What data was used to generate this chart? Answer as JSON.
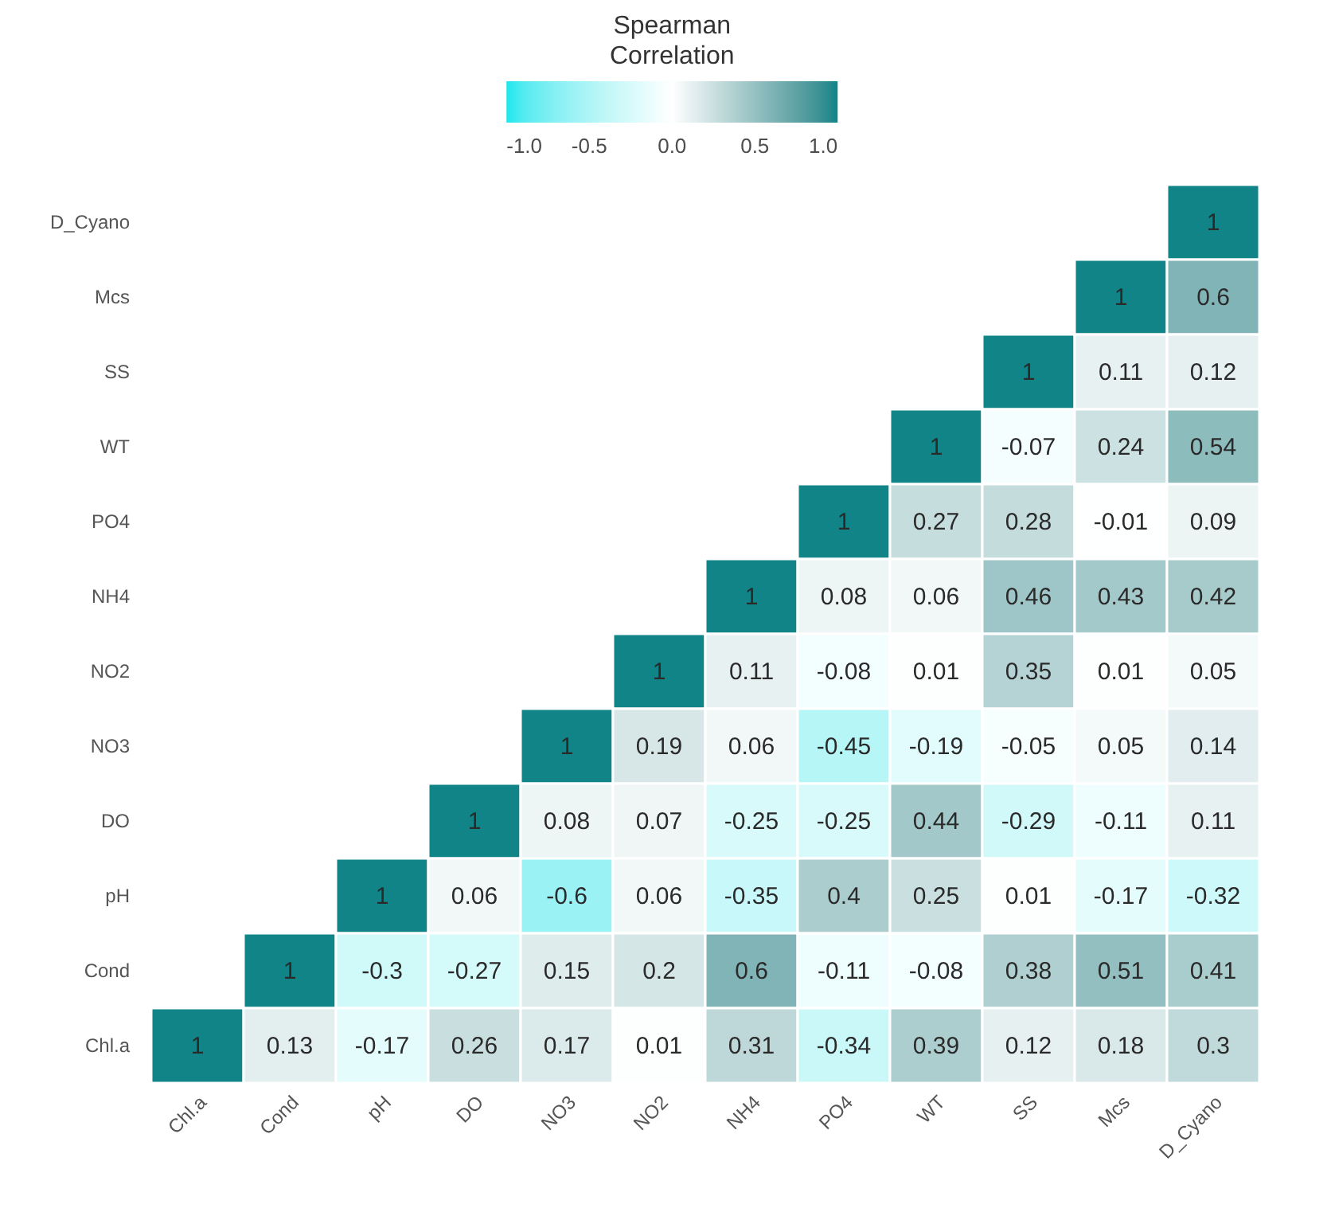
{
  "chart_data": {
    "type": "heatmap",
    "clabel": "Spearman Correlation",
    "data_labels": true,
    "categories": [
      "Chl.a",
      "Cond",
      "pH",
      "DO",
      "NO3",
      "NO2",
      "NH4",
      "PO4",
      "WT",
      "SS",
      "Mcs",
      "D_Cyano"
    ],
    "y_categories": [
      "D_Cyano",
      "Mcs",
      "SS",
      "WT",
      "PO4",
      "NH4",
      "NO2",
      "NO3",
      "DO",
      "pH",
      "Cond",
      "Chl.a"
    ],
    "cells": [
      [
        null,
        null,
        null,
        null,
        null,
        null,
        null,
        null,
        null,
        null,
        null,
        1
      ],
      [
        null,
        null,
        null,
        null,
        null,
        null,
        null,
        null,
        null,
        null,
        1,
        0.6
      ],
      [
        null,
        null,
        null,
        null,
        null,
        null,
        null,
        null,
        null,
        1,
        0.11,
        0.12
      ],
      [
        null,
        null,
        null,
        null,
        null,
        null,
        null,
        null,
        1,
        -0.07,
        0.24,
        0.54
      ],
      [
        null,
        null,
        null,
        null,
        null,
        null,
        null,
        1,
        0.27,
        0.28,
        -0.01,
        0.09
      ],
      [
        null,
        null,
        null,
        null,
        null,
        null,
        1,
        0.08,
        0.06,
        0.46,
        0.43,
        0.42
      ],
      [
        null,
        null,
        null,
        null,
        null,
        1,
        0.11,
        -0.08,
        0.01,
        0.35,
        0.01,
        0.05
      ],
      [
        null,
        null,
        null,
        null,
        1,
        0.19,
        0.06,
        -0.45,
        -0.19,
        -0.05,
        0.05,
        0.14
      ],
      [
        null,
        null,
        null,
        1,
        0.08,
        0.07,
        -0.25,
        -0.25,
        0.44,
        -0.29,
        -0.11,
        0.11
      ],
      [
        null,
        null,
        1,
        0.06,
        -0.6,
        0.06,
        -0.35,
        0.4,
        0.25,
        0.01,
        -0.17,
        -0.32
      ],
      [
        null,
        1,
        -0.3,
        -0.27,
        0.15,
        0.2,
        0.6,
        -0.11,
        -0.08,
        0.38,
        0.51,
        0.41
      ],
      [
        1,
        0.13,
        -0.17,
        0.26,
        0.17,
        0.01,
        0.31,
        -0.34,
        0.39,
        0.12,
        0.18,
        0.3
      ]
    ],
    "clim": [
      -1,
      1
    ],
    "cticks": [
      {
        "value": -1,
        "label": "-1.0"
      },
      {
        "value": -0.5,
        "label": "-0.5"
      },
      {
        "value": 0,
        "label": "0.0"
      },
      {
        "value": 0.5,
        "label": "0.5"
      },
      {
        "value": 1,
        "label": "1.0"
      }
    ],
    "colors": [
      "#1ee8ee",
      "#ffffff",
      "#118488"
    ]
  }
}
